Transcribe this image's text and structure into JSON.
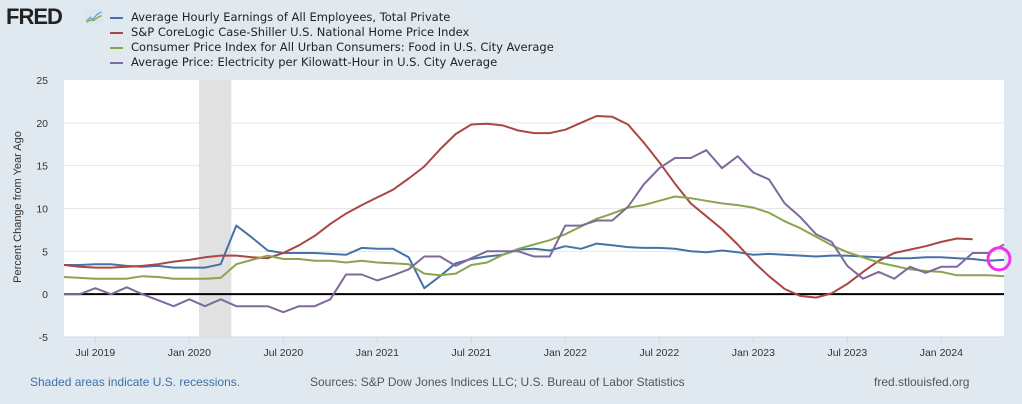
{
  "logo": {
    "text": "FRED",
    "icon": "fred-graph-icon"
  },
  "footer": {
    "recession_note": "Shaded areas indicate U.S. recessions.",
    "sources": "Sources: S&P Dow Jones Indices LLC; U.S. Bureau of Labor Statistics",
    "site": "fred.stlouisfed.org"
  },
  "colors": {
    "earnings": "#4572a7",
    "home": "#aa4643",
    "food": "#89a54e",
    "electricity": "#80699b",
    "highlight": "#ee33ee",
    "background": "#e1e9f0"
  },
  "chart_data": {
    "type": "line",
    "title": "",
    "xlabel": "",
    "ylabel": "Percent Change from Year Ago",
    "ylim": [
      -5,
      25
    ],
    "yticks": [
      "25",
      "20",
      "15",
      "10",
      "5",
      "0",
      "-5"
    ],
    "ytick_values": [
      25,
      20,
      15,
      10,
      5,
      0,
      -5
    ],
    "x_start": "May 2019",
    "x_end": "May 2024",
    "frequency": "monthly",
    "xticks": [
      {
        "label": "Jul 2019",
        "month_index": 2
      },
      {
        "label": "Jan 2020",
        "month_index": 8
      },
      {
        "label": "Jul 2020",
        "month_index": 14
      },
      {
        "label": "Jan 2021",
        "month_index": 20
      },
      {
        "label": "Jul 2021",
        "month_index": 26
      },
      {
        "label": "Jan 2022",
        "month_index": 32
      },
      {
        "label": "Jul 2022",
        "month_index": 38
      },
      {
        "label": "Jan 2023",
        "month_index": 44
      },
      {
        "label": "Jul 2023",
        "month_index": 50
      },
      {
        "label": "Jan 2024",
        "month_index": 56
      }
    ],
    "recession": {
      "start_month_index": 9,
      "end_month_index": 11
    },
    "grid": true,
    "legend_position": "top-left",
    "highlight_marker": {
      "series": "Average Hourly Earnings of All Employees, Total Private",
      "month_index": 60
    },
    "series": [
      {
        "name": "Average Hourly Earnings of All Employees, Total Private",
        "color": "#4572a7",
        "values": [
          3.4,
          3.4,
          3.5,
          3.5,
          3.3,
          3.2,
          3.3,
          3.1,
          3.1,
          3.1,
          3.5,
          8.0,
          6.6,
          5.1,
          4.8,
          4.8,
          4.8,
          4.7,
          4.6,
          5.4,
          5.3,
          5.3,
          4.3,
          0.7,
          2.1,
          3.6,
          4.1,
          4.4,
          4.6,
          5.2,
          5.3,
          5.1,
          5.6,
          5.3,
          5.9,
          5.7,
          5.5,
          5.4,
          5.4,
          5.3,
          5.0,
          4.9,
          5.1,
          4.9,
          4.6,
          4.7,
          4.6,
          4.5,
          4.4,
          4.5,
          4.5,
          4.4,
          4.3,
          4.2,
          4.2,
          4.3,
          4.3,
          4.2,
          4.1,
          3.9,
          4.0
        ]
      },
      {
        "name": "S&P CoreLogic Case-Shiller U.S. National Home Price Index",
        "color": "#aa4643",
        "values": [
          3.4,
          3.2,
          3.1,
          3.1,
          3.2,
          3.3,
          3.5,
          3.8,
          4.0,
          4.3,
          4.5,
          4.5,
          4.3,
          4.2,
          4.8,
          5.7,
          6.8,
          8.2,
          9.4,
          10.4,
          11.3,
          12.2,
          13.5,
          14.9,
          16.9,
          18.7,
          19.8,
          19.9,
          19.7,
          19.1,
          18.8,
          18.8,
          19.2,
          20.0,
          20.8,
          20.7,
          19.8,
          17.7,
          15.4,
          12.9,
          10.6,
          9.1,
          7.6,
          5.8,
          3.8,
          2.1,
          0.6,
          -0.2,
          -0.4,
          0.1,
          1.2,
          2.6,
          3.9,
          4.8,
          5.2,
          5.6,
          6.1,
          6.5,
          6.4,
          null,
          null
        ]
      },
      {
        "name": "Consumer Price Index for All Urban Consumers: Food in U.S. City Average",
        "color": "#89a54e",
        "values": [
          2.0,
          1.9,
          1.8,
          1.8,
          1.8,
          2.1,
          2.0,
          1.8,
          1.8,
          1.8,
          1.9,
          3.5,
          4.0,
          4.5,
          4.1,
          4.1,
          3.9,
          3.9,
          3.7,
          3.9,
          3.7,
          3.6,
          3.5,
          2.4,
          2.2,
          2.4,
          3.4,
          3.7,
          4.6,
          5.3,
          5.8,
          6.3,
          7.0,
          7.9,
          8.8,
          9.4,
          10.1,
          10.4,
          10.9,
          11.4,
          11.2,
          10.9,
          10.6,
          10.4,
          10.1,
          9.5,
          8.5,
          7.7,
          6.7,
          5.7,
          4.9,
          4.3,
          3.7,
          3.3,
          2.9,
          2.7,
          2.6,
          2.2,
          2.2,
          2.2,
          2.1
        ]
      },
      {
        "name": "Average Price: Electricity per Kilowatt-Hour in U.S. City Average",
        "color": "#80699b",
        "values": [
          0.0,
          0.0,
          0.7,
          0.0,
          0.8,
          0.0,
          -0.7,
          -1.4,
          -0.6,
          -1.4,
          -0.6,
          -1.4,
          -1.4,
          -1.4,
          -2.1,
          -1.4,
          -1.4,
          -0.6,
          2.3,
          2.3,
          1.6,
          2.2,
          2.9,
          4.4,
          4.4,
          3.3,
          4.2,
          5.0,
          5.0,
          5.0,
          4.4,
          4.4,
          8.0,
          8.0,
          8.6,
          8.6,
          10.2,
          12.8,
          14.7,
          15.9,
          15.9,
          16.8,
          14.7,
          16.1,
          14.2,
          13.4,
          10.6,
          9.0,
          7.0,
          6.1,
          3.3,
          1.8,
          2.6,
          1.8,
          3.2,
          2.5,
          3.2,
          3.2,
          4.8,
          4.8,
          5.8
        ]
      }
    ]
  }
}
